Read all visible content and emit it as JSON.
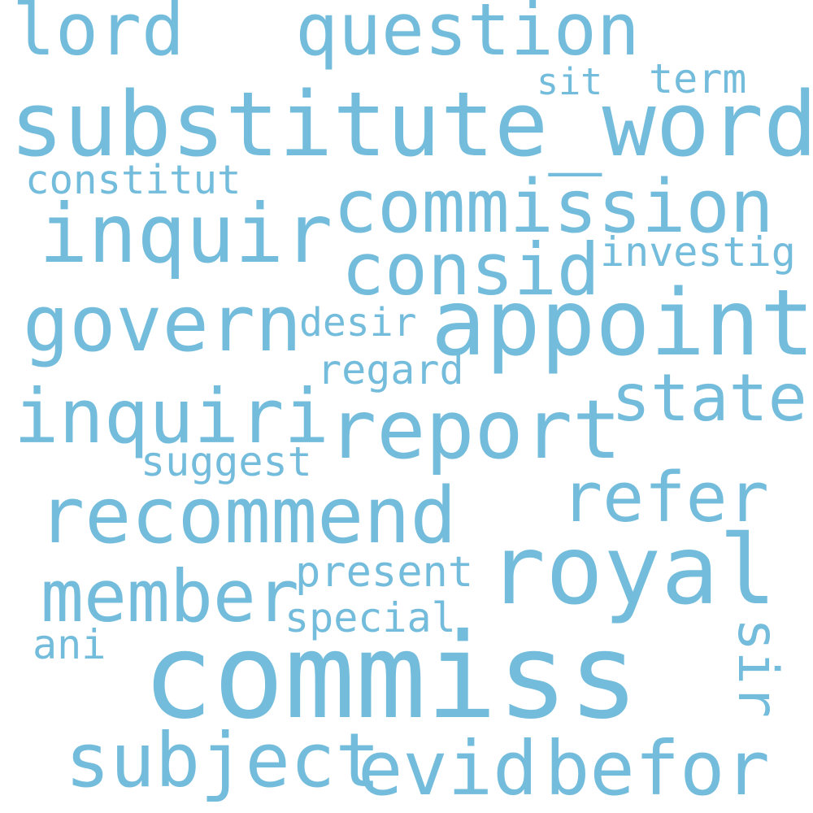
{
  "color": "#74bcdb",
  "words": [
    {
      "id": "lord",
      "text": "lord"
    },
    {
      "id": "question",
      "text": "question"
    },
    {
      "id": "sit",
      "text": "sit"
    },
    {
      "id": "term",
      "text": "term"
    },
    {
      "id": "substitute_word",
      "text": "substitute_word"
    },
    {
      "id": "constitut",
      "text": "constitut"
    },
    {
      "id": "commission",
      "text": "commission"
    },
    {
      "id": "inquir",
      "text": "inquir"
    },
    {
      "id": "consid",
      "text": "consid"
    },
    {
      "id": "investig",
      "text": "investig"
    },
    {
      "id": "govern",
      "text": "govern"
    },
    {
      "id": "desir",
      "text": "desir"
    },
    {
      "id": "appoint",
      "text": "appoint"
    },
    {
      "id": "regard",
      "text": "regard"
    },
    {
      "id": "state",
      "text": "state"
    },
    {
      "id": "inquiri",
      "text": "inquiri"
    },
    {
      "id": "report",
      "text": "report"
    },
    {
      "id": "suggest",
      "text": "suggest"
    },
    {
      "id": "refer",
      "text": "refer"
    },
    {
      "id": "recommend",
      "text": "recommend"
    },
    {
      "id": "present",
      "text": "present"
    },
    {
      "id": "royal",
      "text": "royal"
    },
    {
      "id": "member",
      "text": "member"
    },
    {
      "id": "special",
      "text": "special"
    },
    {
      "id": "ani",
      "text": "ani"
    },
    {
      "id": "sir",
      "text": "sir"
    },
    {
      "id": "commiss",
      "text": "commiss"
    },
    {
      "id": "subject",
      "text": "subject"
    },
    {
      "id": "evid",
      "text": "evid"
    },
    {
      "id": "befor",
      "text": "befor"
    }
  ]
}
